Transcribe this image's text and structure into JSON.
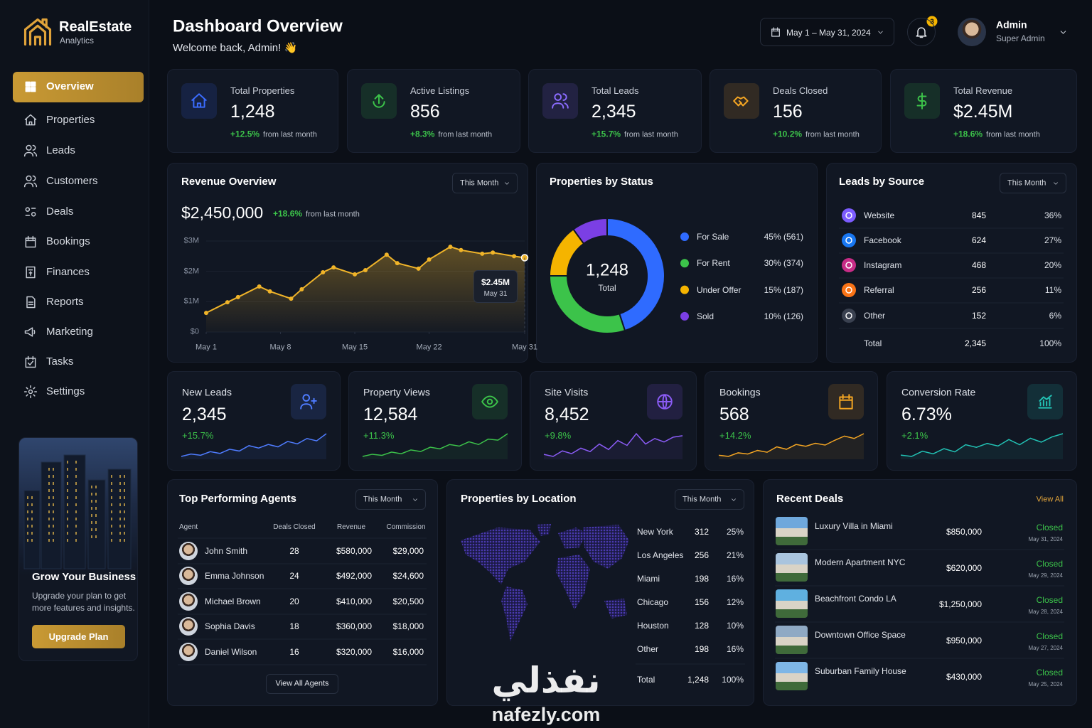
{
  "brand": {
    "name": "RealEstate",
    "tagline": "Analytics"
  },
  "nav": {
    "active": 0,
    "items": [
      "Overview",
      "Properties",
      "Leads",
      "Customers",
      "Deals",
      "Bookings",
      "Finances",
      "Reports",
      "Marketing",
      "Tasks",
      "Settings"
    ]
  },
  "promo": {
    "title": "Grow Your Business",
    "text_lines": [
      "Upgrade your plan to get",
      "more features and insights."
    ],
    "button": "Upgrade Plan"
  },
  "header": {
    "title": "Dashboard Overview",
    "greeting": "Welcome back, Admin! 👋",
    "date_range": "May 1 – May 31, 2024",
    "notification_count": 3,
    "user_name": "Admin",
    "user_role": "Super Admin"
  },
  "kpis": [
    {
      "label": "Total Properties",
      "value": "1,248",
      "change": "+12.5%",
      "note": "from last month"
    },
    {
      "label": "Active Listings",
      "value": "856",
      "change": "+8.3%",
      "note": "from last month"
    },
    {
      "label": "Total Leads",
      "value": "2,345",
      "change": "+15.7%",
      "note": "from last month"
    },
    {
      "label": "Deals Closed",
      "value": "156",
      "change": "+10.2%",
      "note": "from last month"
    },
    {
      "label": "Total Revenue",
      "value": "$2.45M",
      "change": "+18.6%",
      "note": "from last month"
    }
  ],
  "chart_data": [
    {
      "type": "line",
      "title": "Revenue Overview",
      "filter": "This Month",
      "total": "$2,450,000",
      "change": "+18.6%",
      "change_note": "from last month",
      "x": [
        1,
        3,
        4,
        6,
        7,
        9,
        10,
        12,
        13,
        15,
        16,
        18,
        19,
        21,
        22,
        24,
        25,
        27,
        28,
        30,
        31
      ],
      "values": [
        630000,
        980000,
        1150000,
        1500000,
        1340000,
        1100000,
        1410000,
        1970000,
        2130000,
        1900000,
        2040000,
        2550000,
        2270000,
        2090000,
        2390000,
        2810000,
        2700000,
        2580000,
        2620000,
        2500000,
        2450000
      ],
      "color": "#f0b429",
      "xlim": [
        1,
        31
      ],
      "xticks": [
        {
          "value": 1,
          "label": "May 1"
        },
        {
          "value": 8,
          "label": "May 8"
        },
        {
          "value": 15,
          "label": "May 15"
        },
        {
          "value": 22,
          "label": "May 22"
        },
        {
          "value": 31,
          "label": "May 31"
        }
      ],
      "ylim": [
        0,
        3000000
      ],
      "yticks": [
        {
          "value": 0,
          "label": "$0"
        },
        {
          "value": 1000000,
          "label": "$1M"
        },
        {
          "value": 2000000,
          "label": "$2M"
        },
        {
          "value": 3000000,
          "label": "$3M"
        }
      ],
      "grid": true,
      "tooltip": {
        "value_label": "$2.45M",
        "date": "May 31"
      }
    },
    {
      "type": "pie",
      "title": "Properties by Status",
      "center_value": "1,248",
      "center_label": "Total",
      "categories": [
        "For Sale",
        "For Rent",
        "Under Offer",
        "Sold"
      ],
      "values": [
        45,
        30,
        15,
        10
      ],
      "value_labels": [
        "45% (561)",
        "30% (374)",
        "15% (187)",
        "10% (126)"
      ],
      "colors": [
        "#2f6bff",
        "#3cc34a",
        "#f5b400",
        "#7b3fe4"
      ]
    }
  ],
  "leads_by_source": {
    "title": "Leads by Source",
    "filter": "This Month",
    "rows": [
      [
        "Website",
        "845",
        "36%"
      ],
      [
        "Facebook",
        "624",
        "27%"
      ],
      [
        "Instagram",
        "468",
        "20%"
      ],
      [
        "Referral",
        "256",
        "11%"
      ],
      [
        "Other",
        "152",
        "6%"
      ]
    ],
    "total": [
      "Total",
      "2,345",
      "100%"
    ]
  },
  "mini_stats": [
    {
      "label": "New Leads",
      "value": "2,345",
      "change": "+15.7%",
      "color": "#4f7cff",
      "trend": [
        10,
        14,
        12,
        18,
        15,
        22,
        19,
        28,
        24,
        30,
        26,
        35,
        31,
        40,
        36,
        48
      ]
    },
    {
      "label": "Property Views",
      "value": "12,584",
      "change": "+11.3%",
      "color": "#3cc34a",
      "trend": [
        8,
        12,
        10,
        16,
        13,
        20,
        17,
        25,
        22,
        30,
        27,
        35,
        30,
        40,
        38,
        50
      ]
    },
    {
      "label": "Site Visits",
      "value": "8,452",
      "change": "+9.8%",
      "color": "#8b5cf6",
      "trend": [
        15,
        12,
        20,
        16,
        24,
        19,
        30,
        22,
        35,
        28,
        45,
        30,
        38,
        33,
        40,
        42
      ]
    },
    {
      "label": "Bookings",
      "value": "568",
      "change": "+14.2%",
      "color": "#f5a623",
      "trend": [
        10,
        8,
        14,
        12,
        18,
        15,
        24,
        20,
        28,
        25,
        30,
        27,
        35,
        42,
        38,
        46
      ]
    },
    {
      "label": "Conversion Rate",
      "value": "6.73%",
      "change": "+2.1%",
      "color": "#22c3b5",
      "trend": [
        12,
        10,
        18,
        14,
        22,
        17,
        28,
        24,
        30,
        26,
        36,
        28,
        38,
        32,
        40,
        45
      ]
    }
  ],
  "agents": {
    "title": "Top Performing Agents",
    "filter": "This Month",
    "columns": [
      "Agent",
      "Deals Closed",
      "Revenue",
      "Commission"
    ],
    "rows": [
      [
        "John Smith",
        "28",
        "$580,000",
        "$29,000"
      ],
      [
        "Emma Johnson",
        "24",
        "$492,000",
        "$24,600"
      ],
      [
        "Michael Brown",
        "20",
        "$410,000",
        "$20,500"
      ],
      [
        "Sophia Davis",
        "18",
        "$360,000",
        "$18,000"
      ],
      [
        "Daniel Wilson",
        "16",
        "$320,000",
        "$16,000"
      ]
    ],
    "button": "View All Agents"
  },
  "locations": {
    "title": "Properties by Location",
    "filter": "This Month",
    "rows": [
      [
        "New York",
        "312",
        "25%"
      ],
      [
        "Los Angeles",
        "256",
        "21%"
      ],
      [
        "Miami",
        "198",
        "16%"
      ],
      [
        "Chicago",
        "156",
        "12%"
      ],
      [
        "Houston",
        "128",
        "10%"
      ],
      [
        "Other",
        "198",
        "16%"
      ]
    ],
    "total": [
      "Total",
      "1,248",
      "100%"
    ]
  },
  "recent_deals": {
    "title": "Recent Deals",
    "link": "View All",
    "rows": [
      {
        "name": "Luxury Villa in Miami",
        "price": "$850,000",
        "status": "Closed",
        "date": "May 31, 2024"
      },
      {
        "name": "Modern Apartment NYC",
        "price": "$620,000",
        "status": "Closed",
        "date": "May 29, 2024"
      },
      {
        "name": "Beachfront Condo LA",
        "price": "$1,250,000",
        "status": "Closed",
        "date": "May 28, 2024"
      },
      {
        "name": "Downtown Office Space",
        "price": "$950,000",
        "status": "Closed",
        "date": "May 27, 2024"
      },
      {
        "name": "Suburban Family House",
        "price": "$430,000",
        "status": "Closed",
        "date": "May 25, 2024"
      }
    ]
  },
  "watermark": {
    "brand": "نفذلي",
    "site": "nafezly.com"
  }
}
